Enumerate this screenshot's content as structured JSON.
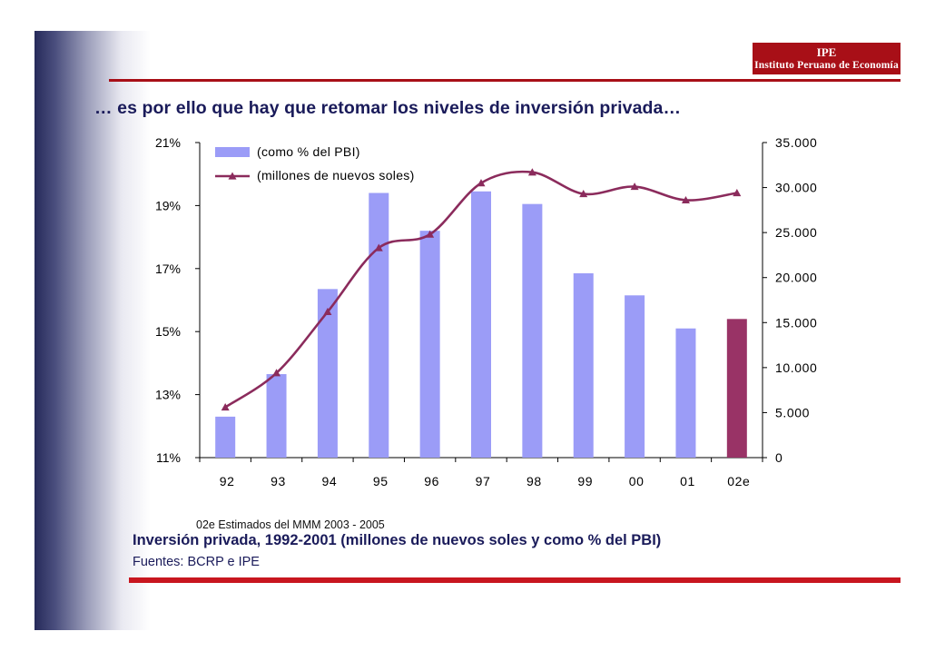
{
  "slide": {
    "title": "… es por ello que hay que retomar los niveles de inversión privada…",
    "footnote": "02e Estimados del MMM 2003 - 2005",
    "caption": "Inversión privada, 1992-2001 (millones de nuevos soles y como % del PBI)",
    "source": "Fuentes: BCRP e IPE"
  },
  "logo": {
    "abbr": "IPE",
    "name": "Instituto Peruano de Economía"
  },
  "colors": {
    "bar": "#9b9cf7",
    "bar_highlight": "#993366",
    "line": "#8b2b5c",
    "brand_red": "#a80f17",
    "title": "#1a1b5a"
  },
  "chart_data": {
    "type": "bar+line",
    "categories": [
      "92",
      "93",
      "94",
      "95",
      "96",
      "97",
      "98",
      "99",
      "00",
      "01",
      "02e"
    ],
    "series": [
      {
        "name": "(como %  del PBI)",
        "type": "bar",
        "axis": "left",
        "values": [
          12.3,
          13.65,
          16.35,
          19.4,
          18.2,
          19.45,
          19.05,
          16.85,
          16.15,
          15.1,
          15.4
        ],
        "highlight_index": 10
      },
      {
        "name": "(millones de nuevos soles)",
        "type": "line",
        "axis": "right",
        "values": [
          5600,
          9400,
          16200,
          23300,
          24800,
          30500,
          31700,
          29300,
          30100,
          28600,
          29400
        ]
      }
    ],
    "left_axis": {
      "ylim": [
        11,
        21
      ],
      "ticks": [
        11,
        13,
        15,
        17,
        19,
        21
      ],
      "tick_labels": [
        "11%",
        "13%",
        "15%",
        "17%",
        "19%",
        "21%"
      ]
    },
    "right_axis": {
      "ylim": [
        0,
        35000
      ],
      "ticks": [
        0,
        5000,
        10000,
        15000,
        20000,
        25000,
        30000,
        35000
      ],
      "tick_labels": [
        "0",
        "5.000",
        "10.000",
        "15.000",
        "20.000",
        "25.000",
        "30.000",
        "35.000"
      ]
    },
    "legend": {
      "position": "top-left",
      "entries": [
        "(como %  del PBI)",
        "(millones de nuevos soles)"
      ]
    }
  }
}
